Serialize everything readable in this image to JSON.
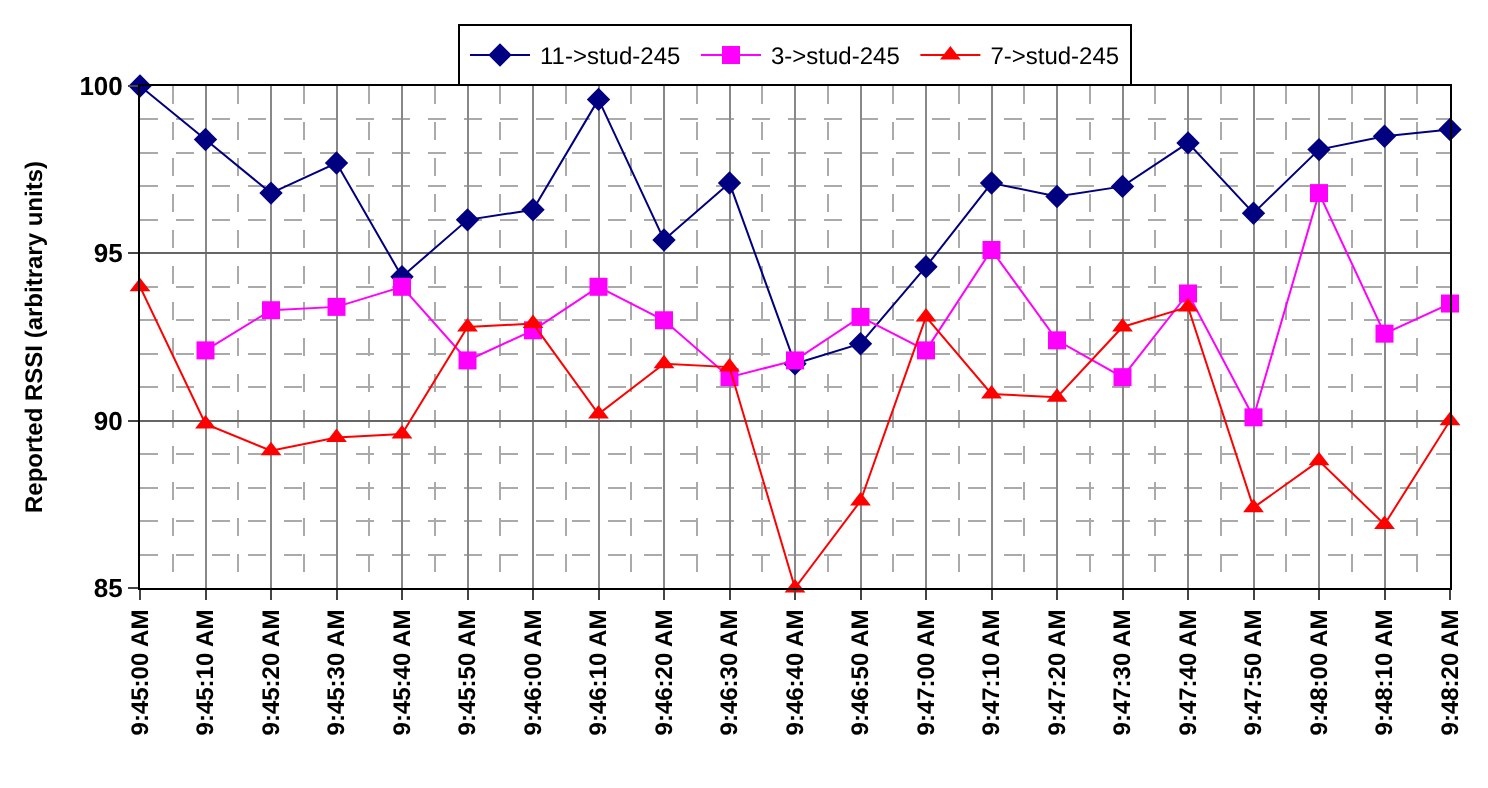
{
  "chart_data": {
    "type": "line",
    "ylabel": "Reported RSSI (arbitrary units)",
    "categories": [
      "9:45:00 AM",
      "9:45:10 AM",
      "9:45:20 AM",
      "9:45:30 AM",
      "9:45:40 AM",
      "9:45:50 AM",
      "9:46:00 AM",
      "9:46:10 AM",
      "9:46:20 AM",
      "9:46:30 AM",
      "9:46:40 AM",
      "9:46:50 AM",
      "9:47:00 AM",
      "9:47:10 AM",
      "9:47:20 AM",
      "9:47:30 AM",
      "9:47:40 AM",
      "9:47:50 AM",
      "9:48:00 AM",
      "9:48:10 AM",
      "9:48:20 AM"
    ],
    "series": [
      {
        "name": "11->stud-245",
        "color": "#000080",
        "marker": "diamond",
        "values": [
          100,
          98.4,
          96.8,
          97.7,
          94.3,
          96.0,
          96.3,
          99.6,
          95.4,
          97.1,
          91.7,
          92.3,
          94.6,
          97.1,
          96.7,
          97.0,
          98.3,
          96.2,
          98.1,
          98.5,
          98.7
        ]
      },
      {
        "name": "3->stud-245",
        "color": "#ff00ff",
        "marker": "square",
        "values": [
          null,
          92.1,
          93.3,
          93.4,
          94.0,
          91.8,
          92.7,
          94.0,
          93.0,
          91.3,
          91.8,
          93.1,
          92.1,
          95.1,
          92.4,
          91.3,
          93.8,
          90.1,
          96.8,
          92.6,
          93.5
        ]
      },
      {
        "name": "7->stud-245",
        "color": "#ff0000",
        "marker": "triangle",
        "values": [
          94.0,
          89.9,
          89.1,
          89.5,
          89.6,
          92.8,
          92.9,
          90.2,
          91.7,
          91.6,
          85,
          87.6,
          93.1,
          90.8,
          90.7,
          92.8,
          93.4,
          87.4,
          88.8,
          86.9,
          90.0
        ]
      }
    ],
    "ylim": [
      85,
      100
    ],
    "yticks": [
      85,
      90,
      95,
      100
    ],
    "grid": true,
    "legend": "top",
    "line_style": "solid"
  }
}
